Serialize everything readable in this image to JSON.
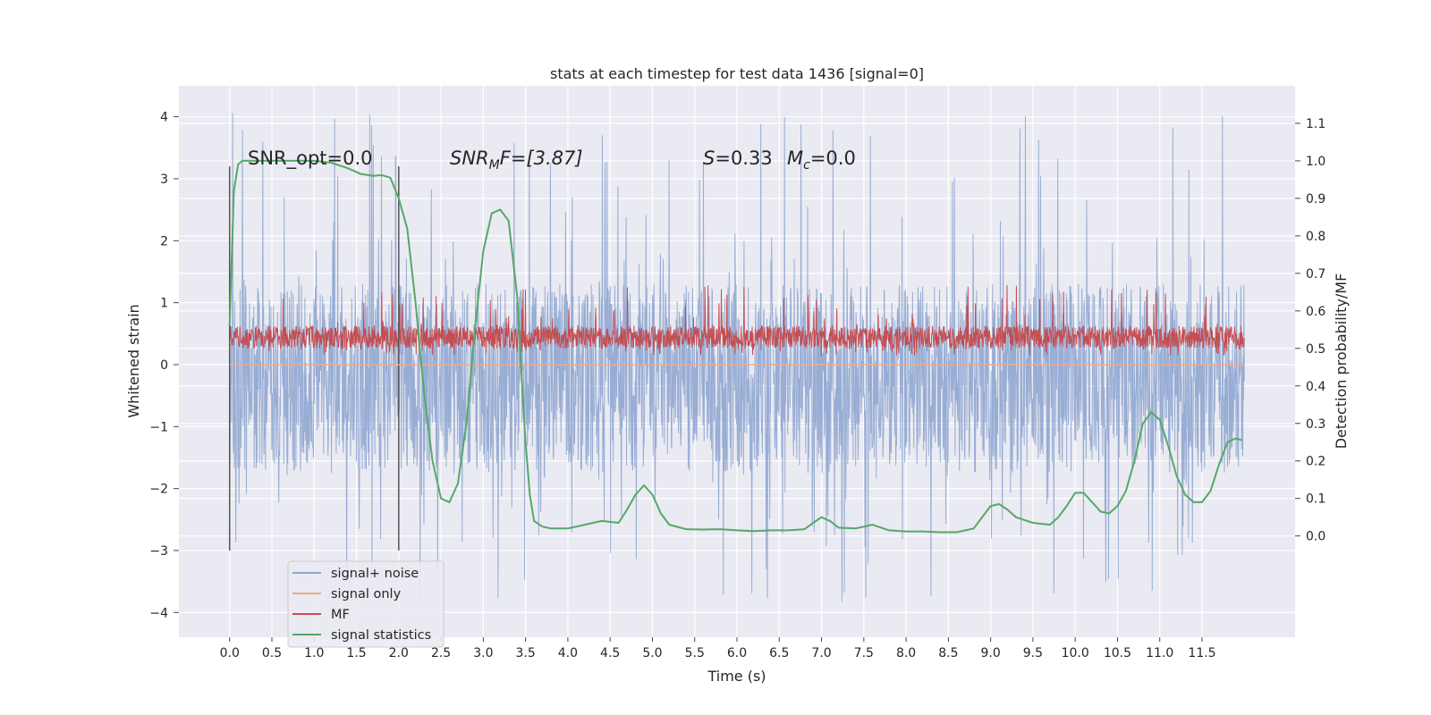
{
  "chart_data": {
    "type": "line",
    "title": "stats at each timestep for test data 1436 [signal=0]",
    "xlabel": "Time (s)",
    "ylabel": "Whitened strain",
    "y2label": "Detection probability/MF",
    "xlim": [
      -0.6,
      12.6
    ],
    "ylim": [
      -4.4,
      4.5
    ],
    "y2lim": [
      -0.27,
      1.2
    ],
    "x_ticks": [
      "0.0",
      "0.5",
      "1.0",
      "1.5",
      "2.0",
      "2.5",
      "3.0",
      "3.5",
      "4.0",
      "4.5",
      "5.0",
      "5.5",
      "6.0",
      "6.5",
      "7.0",
      "7.5",
      "8.0",
      "8.5",
      "9.0",
      "9.5",
      "10.0",
      "10.5",
      "11.0",
      "11.5"
    ],
    "y_ticks": [
      "4",
      "3",
      "2",
      "1",
      "0",
      "−1",
      "−2",
      "−3",
      "−4"
    ],
    "y2_ticks": [
      "1.1",
      "1.0",
      "0.9",
      "0.8",
      "0.7",
      "0.6",
      "0.5",
      "0.4",
      "0.3",
      "0.2",
      "0.1",
      "0.0"
    ],
    "grid": true,
    "legend_position": "lower-left",
    "annotations": {
      "snr_opt": "SNR_opt=0.0",
      "snr_mf_main": "SNR",
      "snr_mf_sub": "M",
      "snr_mf_rest": "F=[3.87]",
      "s_sym": "S",
      "s_val": "=0.33",
      "mc_main": "M",
      "mc_sub": "c",
      "mc_val": "=0.0"
    },
    "vertical_markers": [
      0.0,
      2.0
    ],
    "vertical_marker_range": [
      -3.0,
      3.2
    ],
    "series": [
      {
        "name": "signal+ noise",
        "axis": "left",
        "color": "#8fa6d0",
        "kind": "noise",
        "x_range": [
          0.0,
          12.0
        ],
        "core_range": [
          -1.75,
          1.3
        ],
        "extreme_range": [
          -3.85,
          4.1
        ]
      },
      {
        "name": "signal only",
        "axis": "left",
        "color": "#f2a98a",
        "x": [
          0.0,
          12.0
        ],
        "y": [
          0.0,
          0.0
        ]
      },
      {
        "name": "MF",
        "axis": "right",
        "color": "#c44e52",
        "kind": "noise",
        "x_range": [
          0.0,
          12.0
        ],
        "core_range": [
          0.5,
          0.56
        ],
        "extreme_range": [
          0.48,
          0.67
        ]
      },
      {
        "name": "signal statistics",
        "axis": "right",
        "color": "#55a868",
        "x": [
          0.0,
          0.05,
          0.1,
          0.15,
          0.25,
          0.4,
          0.6,
          0.8,
          1.0,
          1.2,
          1.4,
          1.55,
          1.7,
          1.8,
          1.9,
          2.0,
          2.1,
          2.2,
          2.3,
          2.4,
          2.5,
          2.6,
          2.7,
          2.8,
          2.9,
          3.0,
          3.1,
          3.2,
          3.3,
          3.4,
          3.45,
          3.5,
          3.55,
          3.6,
          3.7,
          3.8,
          4.0,
          4.2,
          4.4,
          4.6,
          4.7,
          4.8,
          4.9,
          5.0,
          5.1,
          5.2,
          5.4,
          5.6,
          5.8,
          6.0,
          6.2,
          6.4,
          6.6,
          6.8,
          6.9,
          7.0,
          7.1,
          7.2,
          7.4,
          7.6,
          7.8,
          8.0,
          8.2,
          8.4,
          8.6,
          8.8,
          9.0,
          9.1,
          9.2,
          9.3,
          9.5,
          9.7,
          9.8,
          9.9,
          10.0,
          10.1,
          10.2,
          10.3,
          10.4,
          10.5,
          10.6,
          10.7,
          10.8,
          10.9,
          11.0,
          11.1,
          11.2,
          11.3,
          11.4,
          11.5,
          11.6,
          11.7,
          11.8,
          11.9,
          11.97
        ],
        "y": [
          0.56,
          0.92,
          0.99,
          1.0,
          1.0,
          1.0,
          1.0,
          1.0,
          1.0,
          0.995,
          0.98,
          0.965,
          0.96,
          0.962,
          0.955,
          0.9,
          0.82,
          0.62,
          0.38,
          0.2,
          0.1,
          0.09,
          0.14,
          0.3,
          0.55,
          0.76,
          0.86,
          0.87,
          0.84,
          0.64,
          0.44,
          0.25,
          0.11,
          0.04,
          0.025,
          0.02,
          0.02,
          0.03,
          0.04,
          0.035,
          0.07,
          0.11,
          0.135,
          0.11,
          0.06,
          0.03,
          0.018,
          0.017,
          0.018,
          0.015,
          0.013,
          0.015,
          0.015,
          0.018,
          0.035,
          0.05,
          0.04,
          0.022,
          0.02,
          0.03,
          0.015,
          0.012,
          0.012,
          0.01,
          0.01,
          0.02,
          0.08,
          0.085,
          0.07,
          0.05,
          0.035,
          0.03,
          0.05,
          0.08,
          0.115,
          0.115,
          0.09,
          0.065,
          0.06,
          0.08,
          0.12,
          0.2,
          0.3,
          0.33,
          0.31,
          0.24,
          0.16,
          0.11,
          0.09,
          0.09,
          0.12,
          0.19,
          0.25,
          0.26,
          0.255
        ]
      }
    ]
  }
}
